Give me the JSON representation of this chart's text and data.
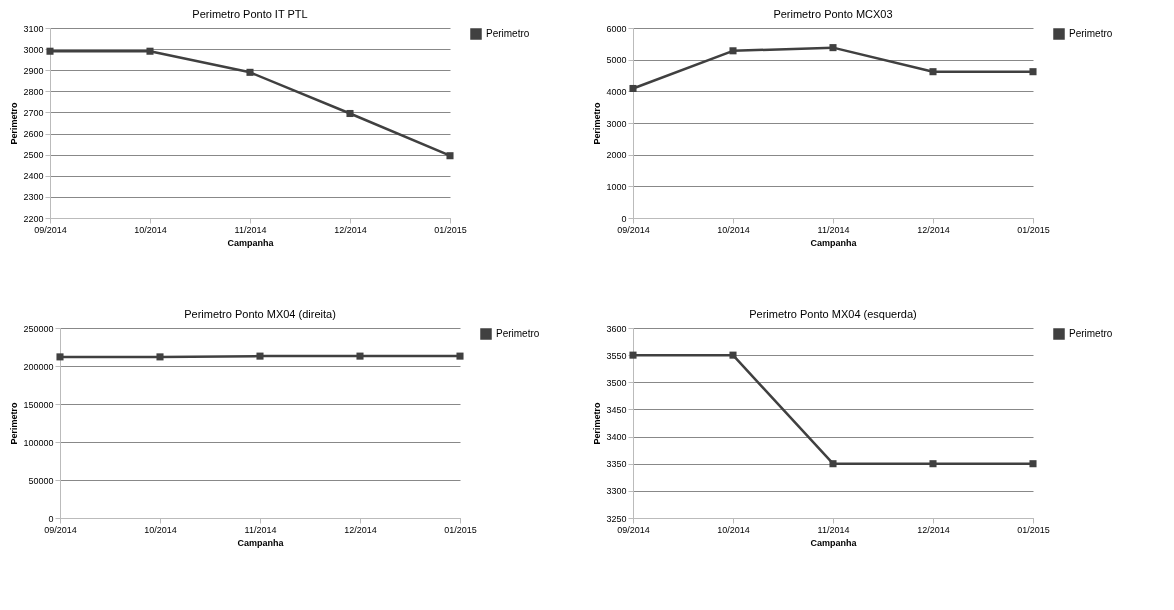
{
  "chart_data": [
    {
      "type": "line",
      "title": "Perimetro Ponto IT PTL",
      "xlabel": "Campanha",
      "ylabel": "Perimetro",
      "categories": [
        "09/2014",
        "10/2014",
        "11/2014",
        "12/2014",
        "01/2015"
      ],
      "series": [
        {
          "name": "Perimetro",
          "color": "#404040",
          "values": [
            2990,
            2990,
            2890,
            2695,
            2495
          ]
        }
      ],
      "ylim": [
        2200,
        3100
      ],
      "yticks": [
        2200,
        2300,
        2400,
        2500,
        2600,
        2700,
        2800,
        2900,
        3000,
        3100
      ],
      "grid": "y",
      "legend": "right",
      "marker": "square"
    },
    {
      "type": "line",
      "title": "Perimetro Ponto MCX03",
      "xlabel": "Campanha",
      "ylabel": "Perimetro",
      "categories": [
        "09/2014",
        "10/2014",
        "11/2014",
        "12/2014",
        "01/2015"
      ],
      "series": [
        {
          "name": "Perimetro",
          "color": "#404040",
          "values": [
            4090,
            5280,
            5380,
            4620,
            4620
          ]
        }
      ],
      "ylim": [
        0,
        6000
      ],
      "yticks": [
        0,
        1000,
        2000,
        3000,
        4000,
        5000,
        6000
      ],
      "grid": "y",
      "legend": "right",
      "marker": "square"
    },
    {
      "type": "line",
      "title": "Perimetro Ponto MX04 (direita)",
      "xlabel": "Campanha",
      "ylabel": "Perimetro",
      "categories": [
        "09/2014",
        "10/2014",
        "11/2014",
        "12/2014",
        "01/2015"
      ],
      "series": [
        {
          "name": "Perimetro",
          "color": "#404040",
          "values": [
            212000,
            212000,
            213000,
            213000,
            213000
          ]
        }
      ],
      "ylim": [
        0,
        250000
      ],
      "yticks": [
        0,
        50000,
        100000,
        150000,
        200000,
        250000
      ],
      "grid": "y",
      "legend": "right",
      "marker": "square"
    },
    {
      "type": "line",
      "title": "Perimetro Ponto MX04 (esquerda)",
      "xlabel": "Campanha",
      "ylabel": "Perimetro",
      "categories": [
        "09/2014",
        "10/2014",
        "11/2014",
        "12/2014",
        "01/2015"
      ],
      "series": [
        {
          "name": "Perimetro",
          "color": "#404040",
          "values": [
            3550,
            3550,
            3350,
            3350,
            3350
          ]
        }
      ],
      "ylim": [
        3250,
        3600
      ],
      "yticks": [
        3250,
        3300,
        3350,
        3400,
        3450,
        3500,
        3550,
        3600
      ],
      "grid": "y",
      "legend": "right",
      "marker": "square"
    }
  ]
}
